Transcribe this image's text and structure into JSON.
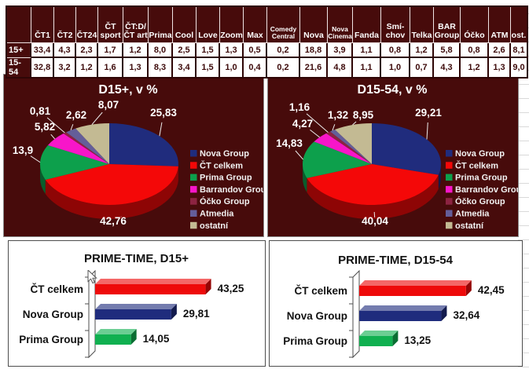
{
  "table": {
    "corner": "",
    "columns": [
      {
        "lines": [
          "ČT1"
        ]
      },
      {
        "lines": [
          "ČT2"
        ]
      },
      {
        "lines": [
          "ČT24"
        ]
      },
      {
        "lines": [
          "ČT",
          "sport"
        ]
      },
      {
        "lines": [
          "ČT:D/",
          "ČT art"
        ]
      },
      {
        "lines": [
          "Prima"
        ]
      },
      {
        "lines": [
          "Cool"
        ]
      },
      {
        "lines": [
          "Love"
        ]
      },
      {
        "lines": [
          "Zoom"
        ]
      },
      {
        "lines": [
          "Max"
        ]
      },
      {
        "lines": [
          "Comedy",
          "Central"
        ],
        "small": true
      },
      {
        "lines": [
          "Nova"
        ]
      },
      {
        "lines": [
          "Nova",
          "Cinema"
        ],
        "small": true
      },
      {
        "lines": [
          "Fanda"
        ]
      },
      {
        "lines": [
          "Smí-",
          "chov"
        ]
      },
      {
        "lines": [
          "Telka"
        ]
      },
      {
        "lines": [
          "BAR",
          "Group"
        ]
      },
      {
        "lines": [
          "Óčko"
        ]
      },
      {
        "lines": [
          "ATM"
        ]
      },
      {
        "lines": [
          "ost."
        ]
      }
    ],
    "rows": [
      {
        "label": "15+",
        "values": [
          "33,4",
          "4,3",
          "2,3",
          "1,7",
          "1,2",
          "8,0",
          "2,5",
          "1,5",
          "1,3",
          "0,5",
          "0,2",
          "18,8",
          "3,9",
          "1,1",
          "0,8",
          "1,2",
          "5,8",
          "0,8",
          "2,6",
          "8,1"
        ]
      },
      {
        "label": "15-54",
        "values": [
          "32,8",
          "3,2",
          "1,2",
          "1,6",
          "1,3",
          "8,3",
          "3,4",
          "1,5",
          "1,0",
          "0,4",
          "0,2",
          "21,6",
          "4,8",
          "1,1",
          "1,0",
          "0,7",
          "4,3",
          "1,2",
          "1,3",
          "9,0"
        ]
      }
    ]
  },
  "chart_data": [
    {
      "type": "pie",
      "title": "D15+, v %",
      "legend_position": "right",
      "labels": [
        "Nova Group",
        "ČT celkem",
        "Prima Group",
        "Barrandov Group",
        "Óčko Group",
        "Atmedia",
        "ostatní"
      ],
      "values": [
        25.83,
        42.76,
        13.9,
        5.82,
        0.81,
        2.62,
        8.07
      ],
      "value_labels": [
        "25,83",
        "42,76",
        "13,9",
        "5,82",
        "0,81",
        "2,62",
        "8,07"
      ],
      "colors": [
        "#202c7d",
        "#f40808",
        "#0da04c",
        "#f716c9",
        "#8c2341",
        "#645e99",
        "#c3ba93"
      ]
    },
    {
      "type": "pie",
      "title": "D15-54, v %",
      "legend_position": "right",
      "labels": [
        "Nova Group",
        "ČT celkem",
        "Prima Group",
        "Barrandov Group",
        "Óčko Group",
        "Atmedia",
        "ostatní"
      ],
      "values": [
        29.21,
        40.04,
        14.83,
        4.27,
        1.16,
        1.32,
        8.95
      ],
      "value_labels": [
        "29,21",
        "40,04",
        "14,83",
        "4,27",
        "1,16",
        "1,32",
        "8,95"
      ],
      "colors": [
        "#202c7d",
        "#f40808",
        "#0da04c",
        "#f716c9",
        "#8c2341",
        "#645e99",
        "#c3ba93"
      ]
    },
    {
      "type": "bar",
      "title": "PRIME-TIME, D15+",
      "categories": [
        "ČT celkem",
        "Nova Group",
        "Prima Group"
      ],
      "values": [
        43.25,
        29.81,
        14.05
      ],
      "value_labels": [
        "43,25",
        "29,81",
        "14,05"
      ],
      "colors": [
        "#ee0a0a",
        "#1f2c7d",
        "#10b050"
      ],
      "xlim": [
        0,
        50
      ],
      "grid": false
    },
    {
      "type": "bar",
      "title": "PRIME-TIME, D15-54",
      "categories": [
        "ČT celkem",
        "Nova Group",
        "Prima Group"
      ],
      "values": [
        42.45,
        32.64,
        13.25
      ],
      "value_labels": [
        "42,45",
        "32,64",
        "13,25"
      ],
      "colors": [
        "#ee0a0a",
        "#1f2c7d",
        "#10b050"
      ],
      "xlim": [
        0,
        50
      ],
      "grid": false
    }
  ],
  "colors": {
    "panel_bg": "#470b0b",
    "panel_border": "#8c8c8c",
    "chart_border": "#4d4d4d",
    "table_border": "#2e0606",
    "table_text": "#3d0a0a",
    "header_text": "#ffffff",
    "gridline": "#d9d9d9",
    "label_text": "#ffffff",
    "bar_text": "#1a1a1a"
  }
}
